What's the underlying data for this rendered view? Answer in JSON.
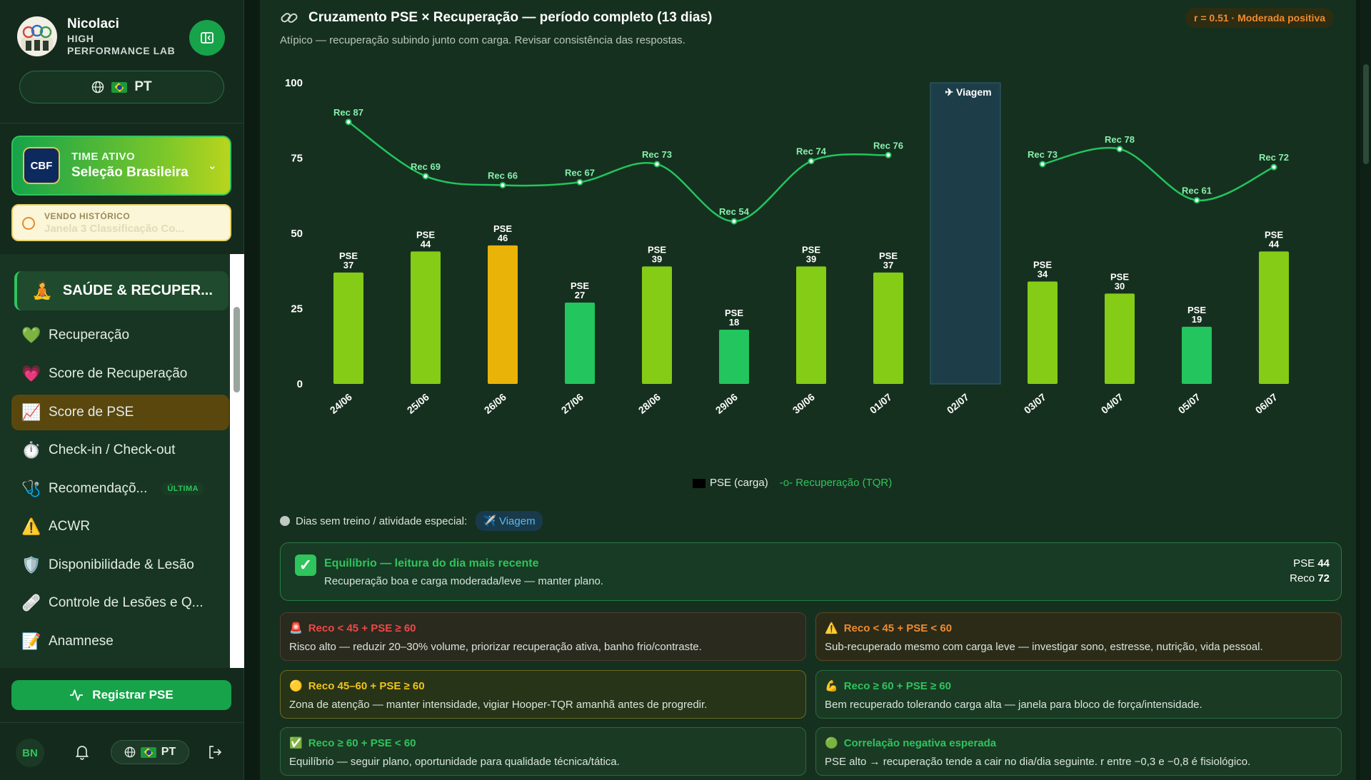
{
  "sidebar": {
    "brand_name": "Nicolaci",
    "brand_sub_1": "HIGH",
    "brand_sub_2": "PERFORMANCE LAB",
    "lang": "PT",
    "team_kicker": "TIME ATIVO",
    "team_name": "Seleção Brasileira",
    "team_logo_text": "CBF",
    "history_kicker": "VENDO HISTÓRICO",
    "history_value": "Janela 3 Classificação Co...",
    "menu_header": "SAÚDE & RECUPER...",
    "items": [
      {
        "label": "Recuperação",
        "icon": "green-heart-icon"
      },
      {
        "label": "Score de Recuperação",
        "icon": "sparkling-heart-icon"
      },
      {
        "label": "Score de PSE",
        "icon": "chart-increasing-icon"
      },
      {
        "label": "Check-in / Check-out",
        "icon": "stopwatch-icon"
      },
      {
        "label": "Recomendaçõ...",
        "icon": "stethoscope-icon",
        "badge": "ÚLTIMA"
      },
      {
        "label": "ACWR",
        "icon": "warning-icon"
      },
      {
        "label": "Disponibilidade & Lesão",
        "icon": "shield-icon"
      },
      {
        "label": "Controle de Lesões e Q...",
        "icon": "bandage-icon"
      },
      {
        "label": "Anamnese",
        "icon": "memo-icon"
      }
    ],
    "active_item": "Score de PSE",
    "register_label": "Registrar PSE",
    "user_initials": "BN",
    "lang_mini": "PT"
  },
  "main": {
    "title": "Cruzamento PSE × Recuperação — período completo (13 dias)",
    "subtitle": "Atípico — recuperação subindo junto com carga. Revisar consistência das respostas.",
    "r_badge": "r = 0.51 · Moderada positiva",
    "legend_pse": "PSE (carga)",
    "legend_rec": "Recuperação (TQR)",
    "special_label": "Dias sem treino / atividade especial:",
    "special_chip": "Viagem",
    "equilibrium": {
      "title": "Equilíbrio — leitura do dia mais recente",
      "desc": "Recuperação boa e carga moderada/leve — manter plano.",
      "pse_label": "PSE",
      "pse_value": "44",
      "reco_label": "Reco",
      "reco_value": "72"
    },
    "rules": [
      {
        "title": "Reco < 45 + PSE ≥ 60",
        "desc": "Risco alto — reduzir 20–30% volume, priorizar recuperação ativa, banho frio/contraste.",
        "icon": "siren-icon",
        "glyph": "🚨",
        "style": "red"
      },
      {
        "title": "Reco < 45 + PSE < 60",
        "desc": "Sub-recuperado mesmo com carga leve — investigar sono, estresse, nutrição, vida pessoal.",
        "icon": "warning-icon",
        "glyph": "⚠️",
        "style": "orange"
      },
      {
        "title": "Reco 45–60 + PSE ≥ 60",
        "desc": "Zona de atenção — manter intensidade, vigiar Hooper-TQR amanhã antes de progredir.",
        "icon": "yellow-circle-icon",
        "glyph": "🟡",
        "style": "yellow"
      },
      {
        "title": "Reco ≥ 60 + PSE ≥ 60",
        "desc": "Bem recuperado tolerando carga alta — janela para bloco de força/intensidade.",
        "icon": "flexed-biceps-icon",
        "glyph": "💪",
        "style": "green"
      },
      {
        "title": "Reco ≥ 60 + PSE < 60",
        "desc": "Equilíbrio — seguir plano, oportunidade para qualidade técnica/tática.",
        "icon": "check-mark-icon",
        "glyph": "✅",
        "style": "green"
      },
      {
        "title": "Correlação negativa esperada",
        "desc": "PSE alto → recuperação tende a cair no dia/dia seguinte. r entre −0,3 e −0,8 é fisiológico.",
        "icon": "green-circle-icon",
        "glyph": "🟢",
        "style": "green"
      }
    ]
  },
  "chart_data": {
    "type": "bar",
    "categories": [
      "24/06",
      "25/06",
      "26/06",
      "27/06",
      "28/06",
      "29/06",
      "30/06",
      "01/07",
      "02/07",
      "03/07",
      "04/07",
      "05/07",
      "06/07"
    ],
    "series": [
      {
        "name": "PSE (carga)",
        "type": "bar",
        "values": [
          37,
          44,
          46,
          27,
          39,
          18,
          39,
          37,
          null,
          34,
          30,
          19,
          44
        ],
        "colors": [
          "#84cc16",
          "#84cc16",
          "#eab308",
          "#22c55e",
          "#84cc16",
          "#22c55e",
          "#84cc16",
          "#84cc16",
          null,
          "#84cc16",
          "#84cc16",
          "#22c55e",
          "#84cc16"
        ],
        "label_prefix": "PSE"
      },
      {
        "name": "Recuperação (TQR)",
        "type": "line",
        "values": [
          87,
          69,
          66,
          67,
          73,
          54,
          74,
          76,
          null,
          73,
          78,
          61,
          72
        ],
        "color": "#22c55e",
        "label_prefix": "Rec"
      }
    ],
    "special_days": [
      {
        "category": "02/07",
        "label": "Viagem",
        "icon": "airplane-icon"
      }
    ],
    "ylim": [
      0,
      100
    ],
    "yticks": [
      0,
      25,
      50,
      75,
      100
    ],
    "grid": false,
    "legend": "bottom"
  }
}
